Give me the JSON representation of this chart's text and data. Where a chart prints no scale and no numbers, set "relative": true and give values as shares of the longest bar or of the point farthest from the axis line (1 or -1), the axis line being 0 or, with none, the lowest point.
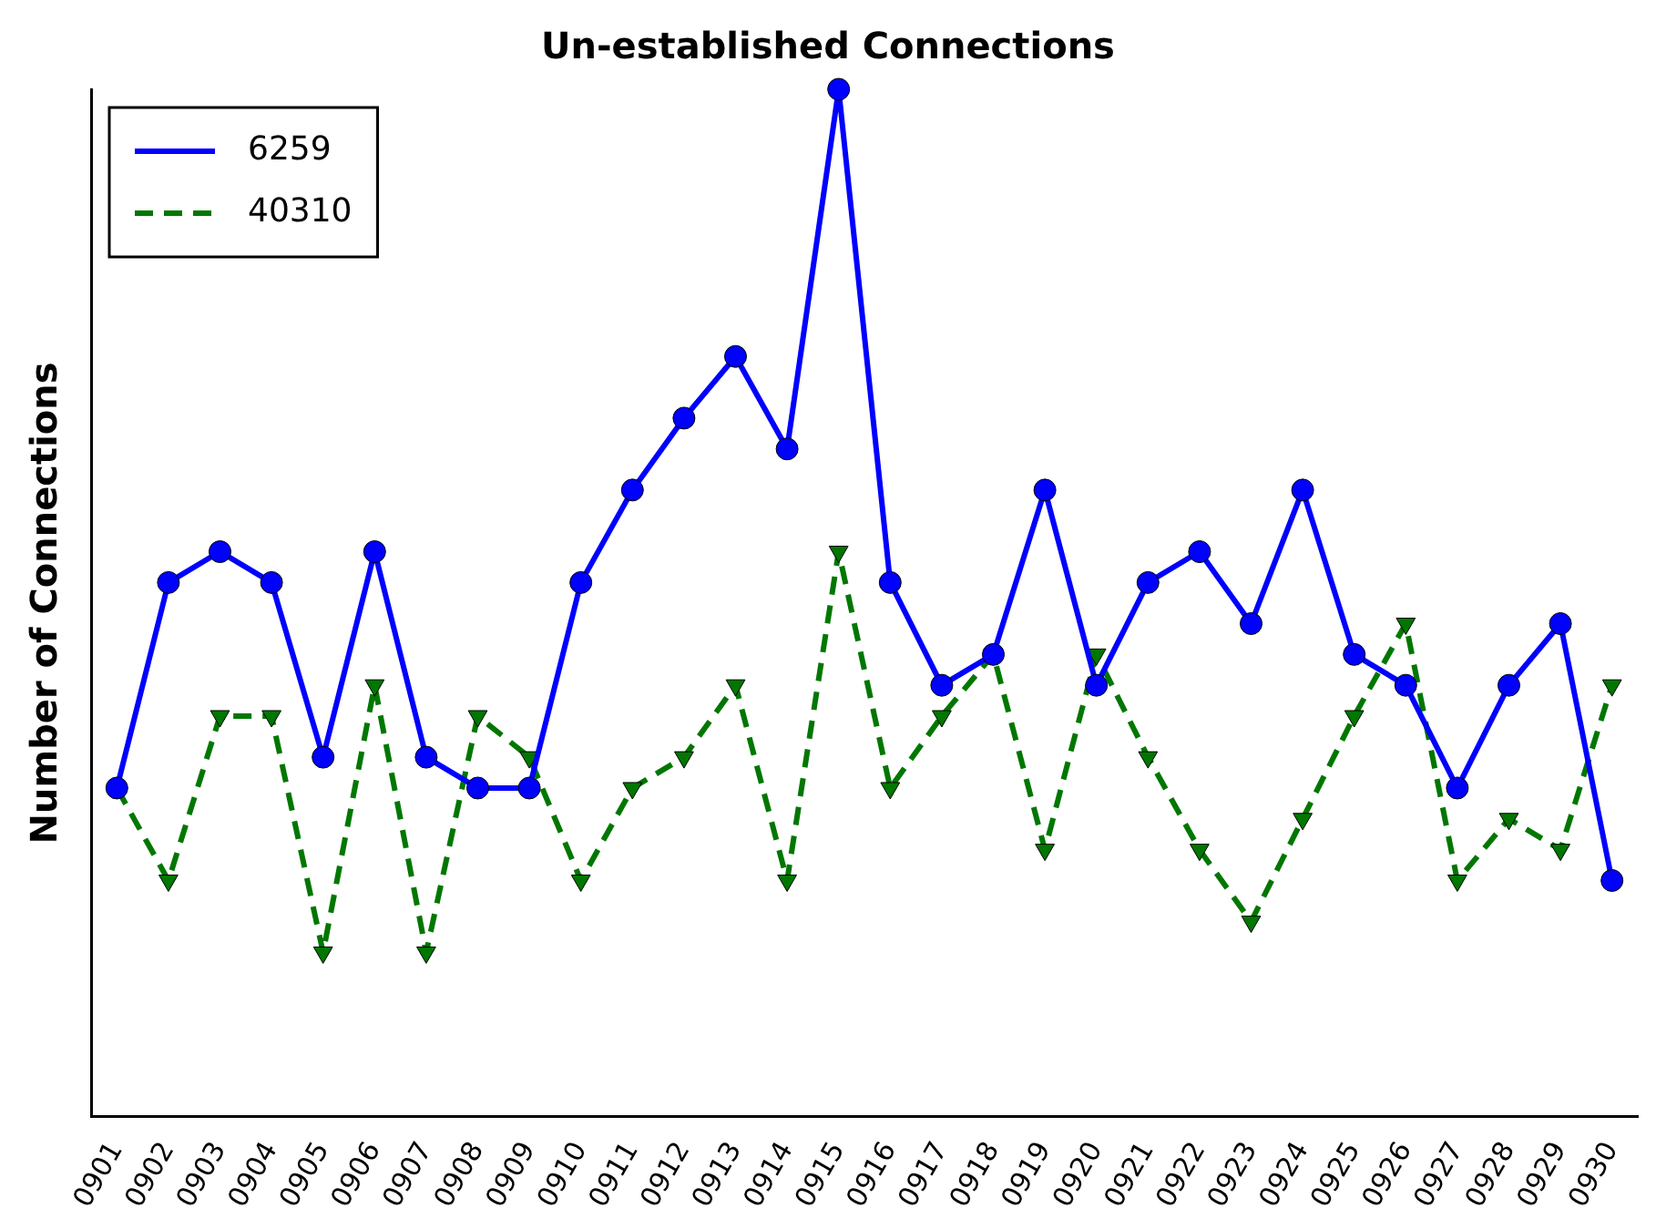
{
  "chart_data": {
    "type": "line",
    "title": "Un-established Connections",
    "ylabel": "Number of Connections",
    "categories": [
      "0901",
      "0902",
      "0903",
      "0904",
      "0905",
      "0906",
      "0907",
      "0908",
      "0909",
      "0910",
      "0911",
      "0912",
      "0913",
      "0914",
      "0915",
      "0916",
      "0917",
      "0918",
      "0919",
      "0920",
      "0921",
      "0922",
      "0923",
      "0924",
      "0925",
      "0926",
      "0927",
      "0928",
      "0929",
      "0930"
    ],
    "relative": true,
    "legend": "top left",
    "grid": false,
    "series": [
      {
        "name": "6259",
        "color": "#0000ff",
        "marker": "circle",
        "line_style": "solid",
        "values": [
          0.32,
          0.52,
          0.55,
          0.52,
          0.35,
          0.55,
          0.35,
          0.32,
          0.32,
          0.52,
          0.61,
          0.68,
          0.74,
          0.65,
          1,
          0.52,
          0.42,
          0.45,
          0.61,
          0.42,
          0.52,
          0.55,
          0.48,
          0.61,
          0.45,
          0.42,
          0.32,
          0.42,
          0.48,
          0.23
        ]
      },
      {
        "name": "40310",
        "color": "#007700",
        "marker": "triangle",
        "line_style": "dashed",
        "values": [
          0.32,
          0.23,
          0.39,
          0.39,
          0.16,
          0.42,
          0.16,
          0.39,
          0.35,
          0.23,
          0.32,
          0.35,
          0.42,
          0.23,
          0.55,
          0.32,
          0.39,
          0.45,
          0.26,
          0.45,
          0.35,
          0.26,
          0.19,
          0.29,
          0.39,
          0.48,
          0.23,
          0.29,
          0.26,
          0.42
        ]
      }
    ]
  }
}
